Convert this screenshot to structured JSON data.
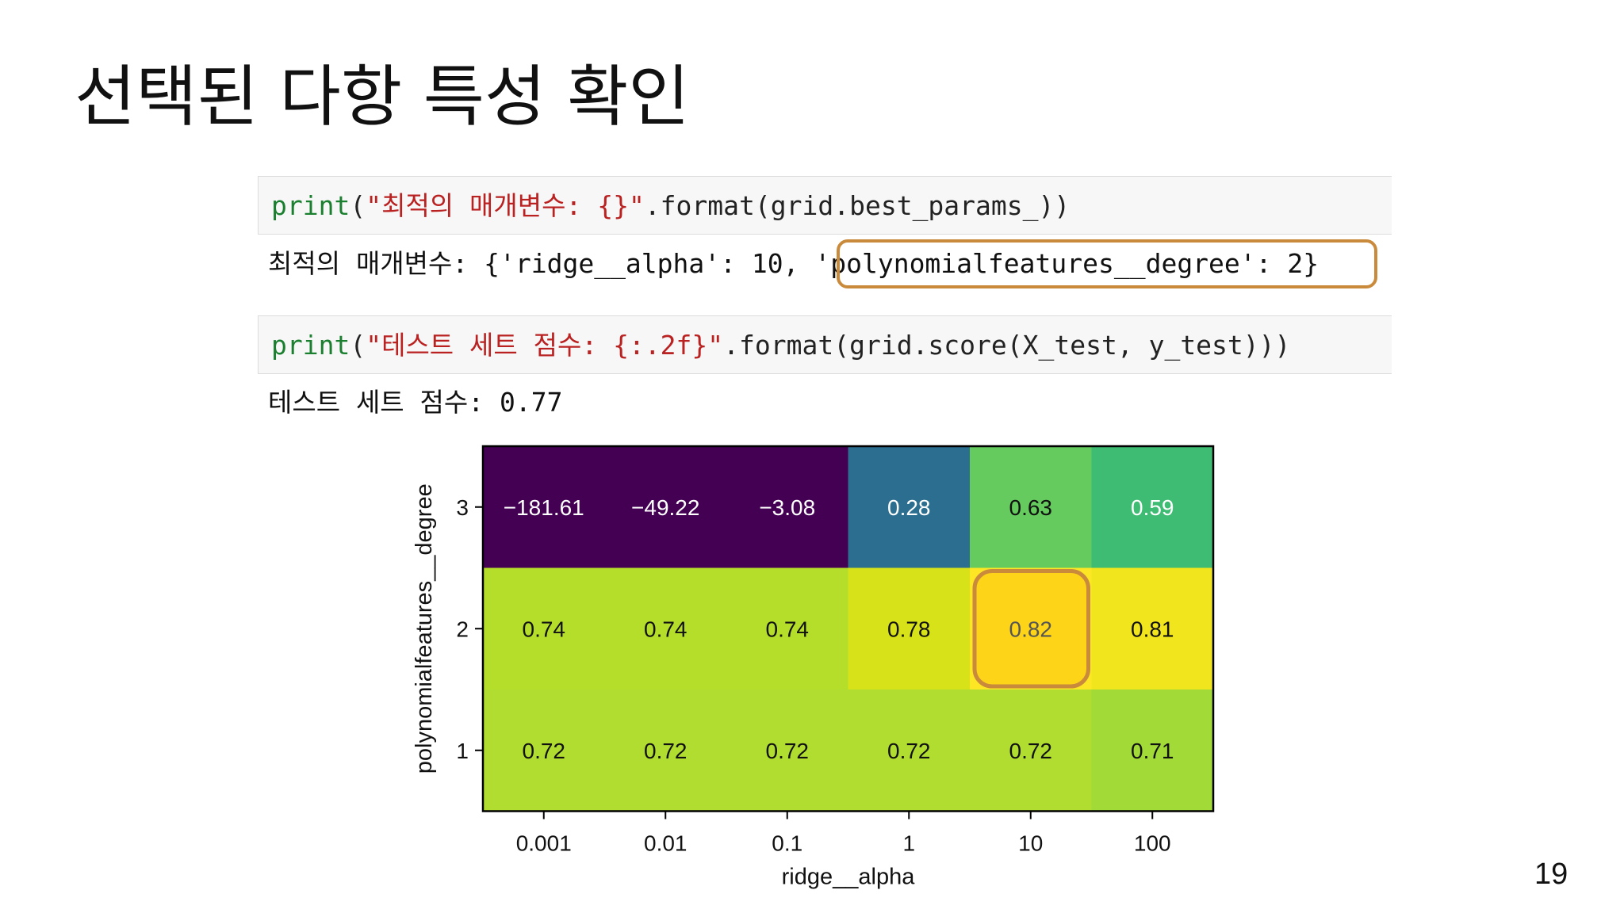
{
  "slide": {
    "title": "선택된 다항 특성 확인",
    "page_number": "19"
  },
  "cells": {
    "code1": {
      "func": "print",
      "open": "(",
      "string": "\"최적의 매개변수: {}\"",
      "rest": ".format(grid.best_params_))"
    },
    "output1": {
      "prefix": "최적의 매개변수: {'ridge__alpha': 10, ",
      "highlighted": "'polynomialfeatures__degree': 2}"
    },
    "code2": {
      "func": "print",
      "open": "(",
      "string": "\"테스트 세트 점수: {:.2f}\"",
      "rest": ".format(grid.score(X_test, y_test)))"
    },
    "output2": "테스트 세트 점수: 0.77"
  },
  "colors": {
    "highlight_border": "#c98a3c",
    "keyword": "#1a7f2e",
    "string": "#ba2121"
  },
  "chart_data": {
    "type": "heatmap",
    "colormap": "viridis",
    "xlabel": "ridge__alpha",
    "ylabel": "polynomialfeatures__degree",
    "x_categories": [
      "0.001",
      "0.01",
      "0.1",
      "1",
      "10",
      "100"
    ],
    "y_categories": [
      "3",
      "2",
      "1"
    ],
    "values": [
      [
        -181.61,
        -49.22,
        -3.08,
        0.28,
        0.63,
        0.59
      ],
      [
        0.74,
        0.74,
        0.74,
        0.78,
        0.82,
        0.81
      ],
      [
        0.72,
        0.72,
        0.72,
        0.72,
        0.72,
        0.71
      ]
    ],
    "labels": [
      [
        "−181.61",
        "−49.22",
        "−3.08",
        "0.28",
        "0.63",
        "0.59"
      ],
      [
        "0.74",
        "0.74",
        "0.74",
        "0.78",
        "0.82",
        "0.81"
      ],
      [
        "0.72",
        "0.72",
        "0.72",
        "0.72",
        "0.72",
        "0.71"
      ]
    ],
    "cell_colors": [
      [
        "#440154",
        "#440154",
        "#440154",
        "#2c6e8f",
        "#65cb5e",
        "#3fbc73"
      ],
      [
        "#b5de2b",
        "#b5de2b",
        "#b5de2b",
        "#d8e219",
        "#fde725",
        "#f1e51d"
      ],
      [
        "#b0dd2f",
        "#b0dd2f",
        "#b0dd2f",
        "#b0dd2f",
        "#b0dd2f",
        "#a2da37"
      ]
    ],
    "text_colors": [
      [
        "#ffffff",
        "#ffffff",
        "#ffffff",
        "#ffffff",
        "#111111",
        "#ffffff"
      ],
      [
        "#111111",
        "#111111",
        "#111111",
        "#111111",
        "#555555",
        "#111111"
      ],
      [
        "#111111",
        "#111111",
        "#111111",
        "#111111",
        "#111111",
        "#111111"
      ]
    ],
    "highlight_cell": {
      "row": 1,
      "col": 4,
      "fill": "#fdd418",
      "border": "#c98a3c"
    }
  }
}
